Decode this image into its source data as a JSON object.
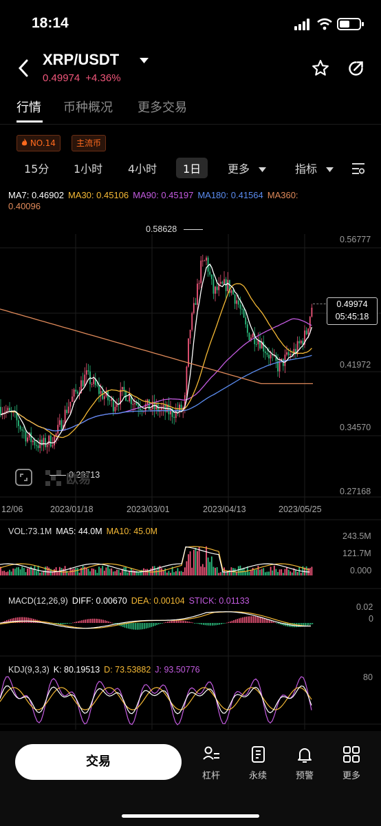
{
  "status_bar": {
    "time": "18:14"
  },
  "header": {
    "pair": "XRP/USDT",
    "price": "0.49974",
    "change": "+4.36%"
  },
  "tabs": [
    {
      "label": "行情",
      "active": true
    },
    {
      "label": "币种概况",
      "active": false
    },
    {
      "label": "更多交易",
      "active": false
    }
  ],
  "tags": [
    "NO.14",
    "主流币"
  ],
  "intervals": [
    "15分",
    "1小时",
    "4小时",
    "1日",
    "更多",
    "指标"
  ],
  "selected_interval": "1日",
  "ma_legend": {
    "ma7": "MA7: 0.46902",
    "ma30": "MA30: 0.45106",
    "ma90": "MA90: 0.45197",
    "ma180": "MA180: 0.41564",
    "ma360a": "MA360:",
    "ma360b": "0.40096"
  },
  "price_axis": [
    "0.56777",
    "0.41972",
    "0.34570",
    "0.27168"
  ],
  "high_label": "0.58628",
  "low_label": "0.29713",
  "current_price": "0.49974",
  "countdown": "05:45:18",
  "date_axis": [
    "12/06",
    "2023/01/18",
    "2023/03/01",
    "2023/04/13",
    "2023/05/25"
  ],
  "watermark": "欧易",
  "vol_legend": {
    "vol": "VOL:73.1M",
    "ma5": "MA5: 44.0M",
    "ma10": "MA10: 45.0M"
  },
  "vol_axis": [
    "243.5M",
    "121.7M",
    "0.000"
  ],
  "macd_legend": {
    "title": "MACD(12,26,9)",
    "diff": "DIFF: 0.00670",
    "dea": "DEA: 0.00104",
    "stick": "STICK: 0.01133"
  },
  "macd_axis": [
    "0.02",
    "0"
  ],
  "kdj_legend": {
    "title": "KDJ(9,3,3)",
    "k": "K: 80.19513",
    "d": "D: 73.53882",
    "j": "J: 93.50776"
  },
  "kdj_axis": [
    "80"
  ],
  "bottom_bar": {
    "trade": "交易",
    "nav": [
      "杠杆",
      "永续",
      "预警",
      "更多"
    ]
  },
  "colors": {
    "up": "#f0567a",
    "down": "#2bbd7e",
    "ma7": "#ffffff",
    "ma30": "#f5b935",
    "ma90": "#c35be0",
    "ma180": "#5b8cf0",
    "ma360": "#e08a5a",
    "tag": "#ff6a1e"
  },
  "chart_data": {
    "type": "candlestick",
    "xlabel": "",
    "ylabel": "",
    "ylim": [
      0.27168,
      0.58628
    ],
    "high": 0.58628,
    "low": 0.29713,
    "last": 0.49974,
    "x_ticks": [
      "12/06",
      "2023/01/18",
      "2023/03/01",
      "2023/04/13",
      "2023/05/25"
    ],
    "ma_close": {
      "ma7": 0.46902,
      "ma30": 0.45106,
      "ma90": 0.45197,
      "ma180": 0.41564,
      "ma360": 0.40096
    },
    "volume": {
      "vol": 73.1,
      "ma5": 44.0,
      "ma10": 45.0,
      "unit": "M",
      "ylim": [
        0,
        243.5
      ]
    },
    "macd": {
      "diff": 0.0067,
      "dea": 0.00104,
      "stick": 0.01133
    },
    "kdj": {
      "k": 80.19513,
      "d": 73.53882,
      "j": 93.50776
    }
  }
}
